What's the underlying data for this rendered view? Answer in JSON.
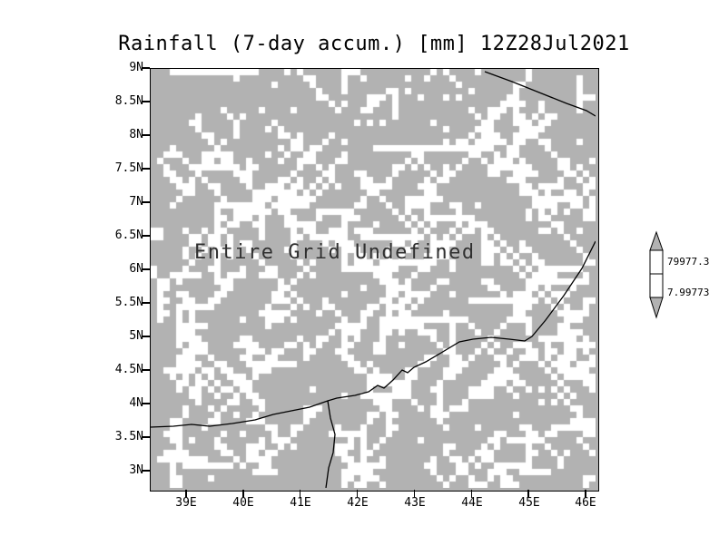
{
  "title": "Rainfall (7-day accum.) [mm] 12Z28Jul2021",
  "plot": {
    "annotation": "Entire Grid Undefined"
  },
  "axes": {
    "y_ticks": [
      "9N",
      "8.5N",
      "8N",
      "7.5N",
      "7N",
      "6.5N",
      "6N",
      "5.5N",
      "5N",
      "4.5N",
      "4N",
      "3.5N",
      "3N"
    ],
    "x_ticks": [
      "39E",
      "40E",
      "41E",
      "42E",
      "43E",
      "44E",
      "45E",
      "46E"
    ]
  },
  "colorbar": {
    "labels": [
      "79977.3",
      "7.99773"
    ]
  },
  "colors": {
    "grid_fill": "#b2b2b2",
    "speckle": "#ffffff",
    "map_line": "#000000",
    "frame": "#000000",
    "annotation_text": "#303030"
  },
  "chart_data": {
    "type": "heatmap",
    "title": "Rainfall (7-day accum.) [mm] 12Z28Jul2021",
    "xlabel": "",
    "ylabel": "",
    "x_tick_labels": [
      "39E",
      "40E",
      "41E",
      "42E",
      "43E",
      "44E",
      "45E",
      "46E"
    ],
    "y_tick_labels": [
      "9N",
      "8.5N",
      "8N",
      "7.5N",
      "7N",
      "6.5N",
      "6N",
      "5.5N",
      "5N",
      "4.5N",
      "4N",
      "3.5N",
      "3N"
    ],
    "values": null,
    "annotation": "Entire Grid Undefined",
    "colorbar_labels": [
      "79977.3",
      "7.99773"
    ],
    "legend_position": "right",
    "grid": false,
    "note": "Entire grid undefined: field rendered as gray/white undefined-data texture with coastline and border outlines overlaid"
  }
}
